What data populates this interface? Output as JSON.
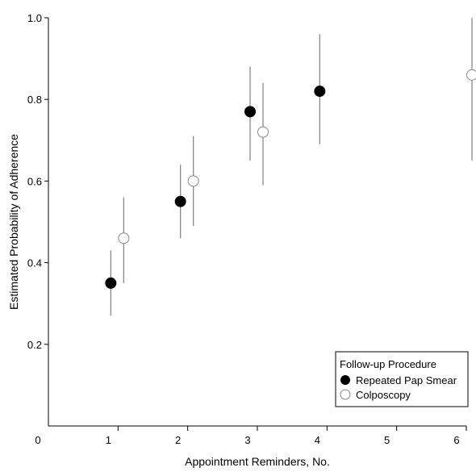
{
  "chart_data": {
    "type": "scatter",
    "xlabel": "Appointment Reminders, No.",
    "ylabel": "Estimated Probability of Adherence",
    "xlim": [
      0,
      6
    ],
    "ylim": [
      0.0,
      1.0
    ],
    "x_ticks": [
      "0",
      "1",
      "2",
      "3",
      "4",
      "5",
      "6"
    ],
    "y_ticks": [
      "0.2",
      "0.4",
      "0.6",
      "0.8",
      "1.0"
    ],
    "grid": false,
    "legend": {
      "title": "Follow-up Procedure",
      "placement": "bottom-right",
      "entries": [
        "Repeated Pap Smear",
        "Colposcopy"
      ]
    },
    "series": [
      {
        "name": "Repeated Pap Smear",
        "marker": "filled-circle",
        "color": "#000000",
        "points": [
          {
            "x": 1,
            "y": 0.35,
            "lo": 0.27,
            "hi": 0.43
          },
          {
            "x": 2,
            "y": 0.55,
            "lo": 0.46,
            "hi": 0.64
          },
          {
            "x": 3,
            "y": 0.77,
            "lo": 0.65,
            "hi": 0.88
          },
          {
            "x": 4,
            "y": 0.82,
            "lo": 0.69,
            "hi": 0.96
          }
        ]
      },
      {
        "name": "Colposcopy",
        "marker": "open-circle",
        "color": "#888888",
        "points": [
          {
            "x": 1,
            "y": 0.46,
            "lo": 0.35,
            "hi": 0.56
          },
          {
            "x": 2,
            "y": 0.6,
            "lo": 0.49,
            "hi": 0.71
          },
          {
            "x": 3,
            "y": 0.72,
            "lo": 0.59,
            "hi": 0.84
          },
          {
            "x": 6,
            "y": 0.86,
            "lo": 0.65,
            "hi": 1.0
          }
        ]
      }
    ]
  }
}
